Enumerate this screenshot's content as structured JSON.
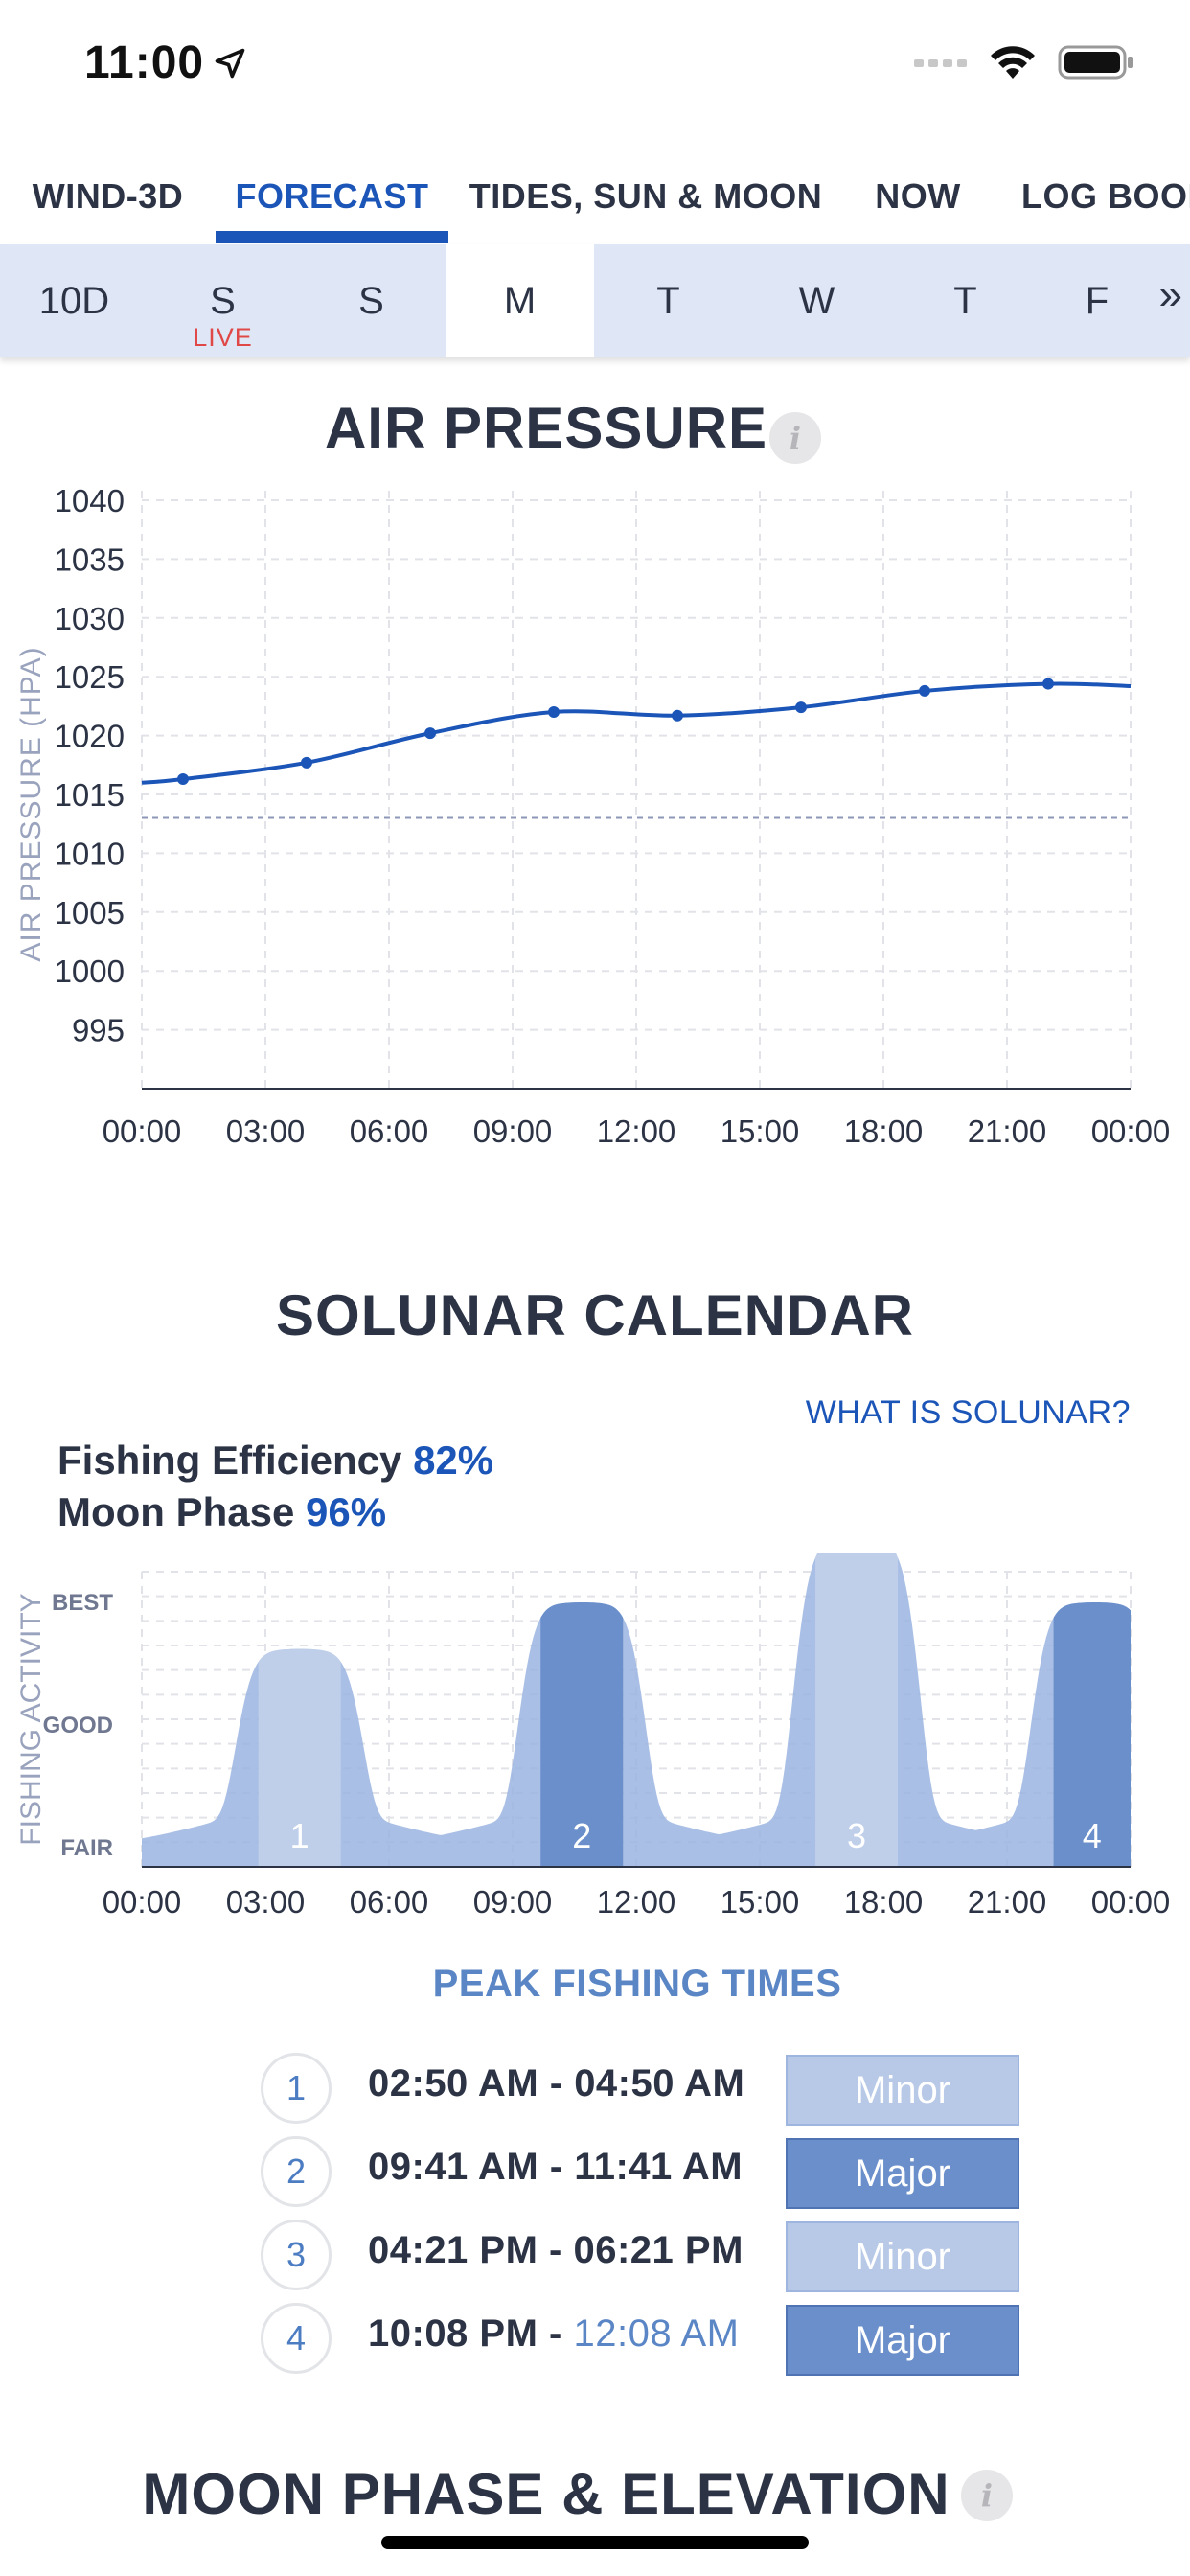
{
  "status_bar": {
    "time": "11:00"
  },
  "nav": {
    "tabs": [
      {
        "label": "WIND-3D",
        "active": false
      },
      {
        "label": "FORECAST",
        "active": true
      },
      {
        "label": "TIDES, SUN & MOON",
        "active": false
      },
      {
        "label": "NOW",
        "active": false
      },
      {
        "label": "LOG BOOK",
        "active": false
      }
    ]
  },
  "days": {
    "items": [
      {
        "label": "10D",
        "selected": false
      },
      {
        "label": "S",
        "selected": false,
        "badge": "LIVE"
      },
      {
        "label": "S",
        "selected": false
      },
      {
        "label": "M",
        "selected": true
      },
      {
        "label": "T",
        "selected": false
      },
      {
        "label": "W",
        "selected": false
      },
      {
        "label": "T",
        "selected": false
      },
      {
        "label": "F",
        "selected": false
      }
    ],
    "more": "»"
  },
  "air_pressure": {
    "title": "AIR PRESSURE",
    "info_icon": "i"
  },
  "solunar": {
    "title": "SOLUNAR CALENDAR",
    "link": "WHAT IS SOLUNAR?",
    "fishing_efficiency_label": "Fishing Efficiency",
    "fishing_efficiency_value": "82%",
    "moon_phase_label": "Moon Phase",
    "moon_phase_value": "96%",
    "peak_title": "PEAK FISHING TIMES",
    "peaks": [
      {
        "num": "1",
        "start": "02:50 AM",
        "sep": " - ",
        "end": "04:50 AM",
        "end_next_day": false,
        "type": "Minor"
      },
      {
        "num": "2",
        "start": "09:41 AM",
        "sep": " - ",
        "end": "11:41 AM",
        "end_next_day": false,
        "type": "Major"
      },
      {
        "num": "3",
        "start": "04:21 PM",
        "sep": " - ",
        "end": "06:21 PM",
        "end_next_day": false,
        "type": "Minor"
      },
      {
        "num": "4",
        "start": "10:08 PM",
        "sep": " - ",
        "end": "12:08 AM",
        "end_next_day": true,
        "type": "Major"
      }
    ]
  },
  "moon_section": {
    "title": "MOON PHASE & ELEVATION",
    "info_icon": "i"
  },
  "colors": {
    "accent": "#1b55b8",
    "minor": "#b8c9e7",
    "major": "#6a8fcb",
    "live": "#e04848"
  },
  "chart_data": [
    {
      "type": "line",
      "title": "AIR PRESSURE",
      "ylabel": "AIR PRESSURE (HPA)",
      "xlabel": "",
      "y_ticks": [
        1040,
        1035,
        1030,
        1025,
        1020,
        1015,
        1010,
        1005,
        1000,
        995
      ],
      "ylim": [
        990,
        1040
      ],
      "x_tick_labels": [
        "00:00",
        "03:00",
        "06:00",
        "09:00",
        "12:00",
        "15:00",
        "18:00",
        "21:00",
        "00:00"
      ],
      "xlim_hours": [
        0,
        24
      ],
      "reference_line": 1013,
      "grid": true,
      "series": [
        {
          "x_hours": [
            0,
            1,
            4,
            7,
            10,
            13,
            16,
            19,
            22,
            24
          ],
          "values": [
            1016.0,
            1016.3,
            1017.7,
            1020.2,
            1022.0,
            1021.7,
            1022.4,
            1023.8,
            1024.4,
            1024.2
          ],
          "markers_at_hours": [
            1,
            4,
            7,
            10,
            13,
            16,
            19,
            22
          ]
        }
      ]
    },
    {
      "type": "area",
      "title": "SOLUNAR CALENDAR",
      "ylabel": "FISHING ACTIVITY",
      "y_tick_labels": [
        "BEST",
        "GOOD",
        "FAIR"
      ],
      "y_tick_values": [
        1.0,
        0.5,
        0.0
      ],
      "x_tick_labels": [
        "00:00",
        "03:00",
        "06:00",
        "09:00",
        "12:00",
        "15:00",
        "18:00",
        "21:00",
        "00:00"
      ],
      "xlim_hours": [
        0,
        24
      ],
      "grid": true,
      "periods": [
        {
          "label": "1",
          "start_hour": 2.83,
          "end_hour": 4.83,
          "peak": 0.65,
          "type": "Minor"
        },
        {
          "label": "2",
          "start_hour": 9.68,
          "end_hour": 11.68,
          "peak": 0.84,
          "type": "Major"
        },
        {
          "label": "3",
          "start_hour": 16.35,
          "end_hour": 18.35,
          "peak": 1.1,
          "type": "Minor"
        },
        {
          "label": "4",
          "start_hour": 22.13,
          "end_hour": 24.13,
          "peak": 0.84,
          "type": "Major"
        }
      ]
    }
  ]
}
